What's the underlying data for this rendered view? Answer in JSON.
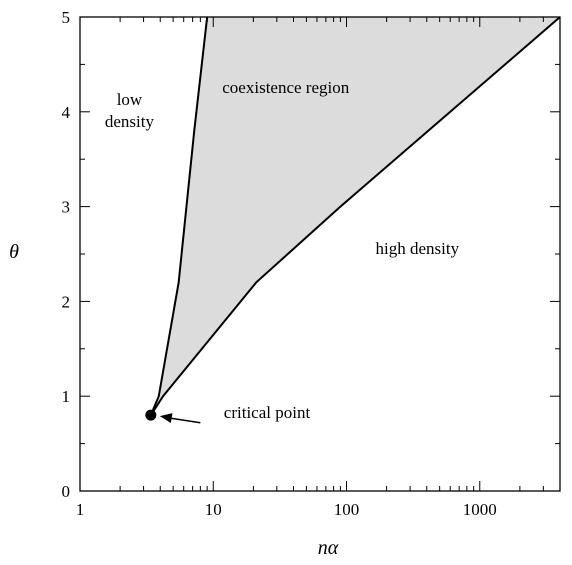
{
  "chart_data": {
    "type": "area",
    "xscale": "log",
    "xlim": [
      1,
      4000
    ],
    "ylim": [
      0,
      5
    ],
    "xlabel": "nα",
    "ylabel": "θ",
    "xticks": [
      {
        "value": 1,
        "label": "1"
      },
      {
        "value": 10,
        "label": "10"
      },
      {
        "value": 100,
        "label": "100"
      },
      {
        "value": 1000,
        "label": "1000"
      }
    ],
    "yticks": [
      {
        "value": 0,
        "label": "0"
      },
      {
        "value": 1,
        "label": "1"
      },
      {
        "value": 2,
        "label": "2"
      },
      {
        "value": 3,
        "label": "3"
      },
      {
        "value": 4,
        "label": "4"
      },
      {
        "value": 5,
        "label": "5"
      }
    ],
    "grid": false,
    "series": [
      {
        "role": "low-density-boundary",
        "x": [
          3.4,
          3.9,
          5.5,
          7.2,
          9.0
        ],
        "y": [
          0.8,
          1.0,
          2.2,
          3.8,
          5.0
        ]
      },
      {
        "role": "high-density-boundary",
        "x": [
          3.4,
          4.2,
          21,
          90,
          4000
        ],
        "y": [
          0.8,
          1.0,
          2.2,
          3.0,
          5.0
        ]
      }
    ],
    "fill_color": "#dcdcdc",
    "critical_point": {
      "x": 3.4,
      "y": 0.8
    },
    "regions": [
      {
        "text": [
          "low",
          "density"
        ],
        "x": 2.35,
        "y": 4.07
      },
      {
        "text": [
          "coexistence region"
        ],
        "x": 35,
        "y": 4.2
      },
      {
        "text": [
          "high density"
        ],
        "x": 340,
        "y": 2.5
      }
    ],
    "annotation": {
      "text": "critical point",
      "text_x": 12,
      "text_y": 0.6,
      "arrow_from_x": 8.0,
      "arrow_from_y": 0.72
    }
  }
}
